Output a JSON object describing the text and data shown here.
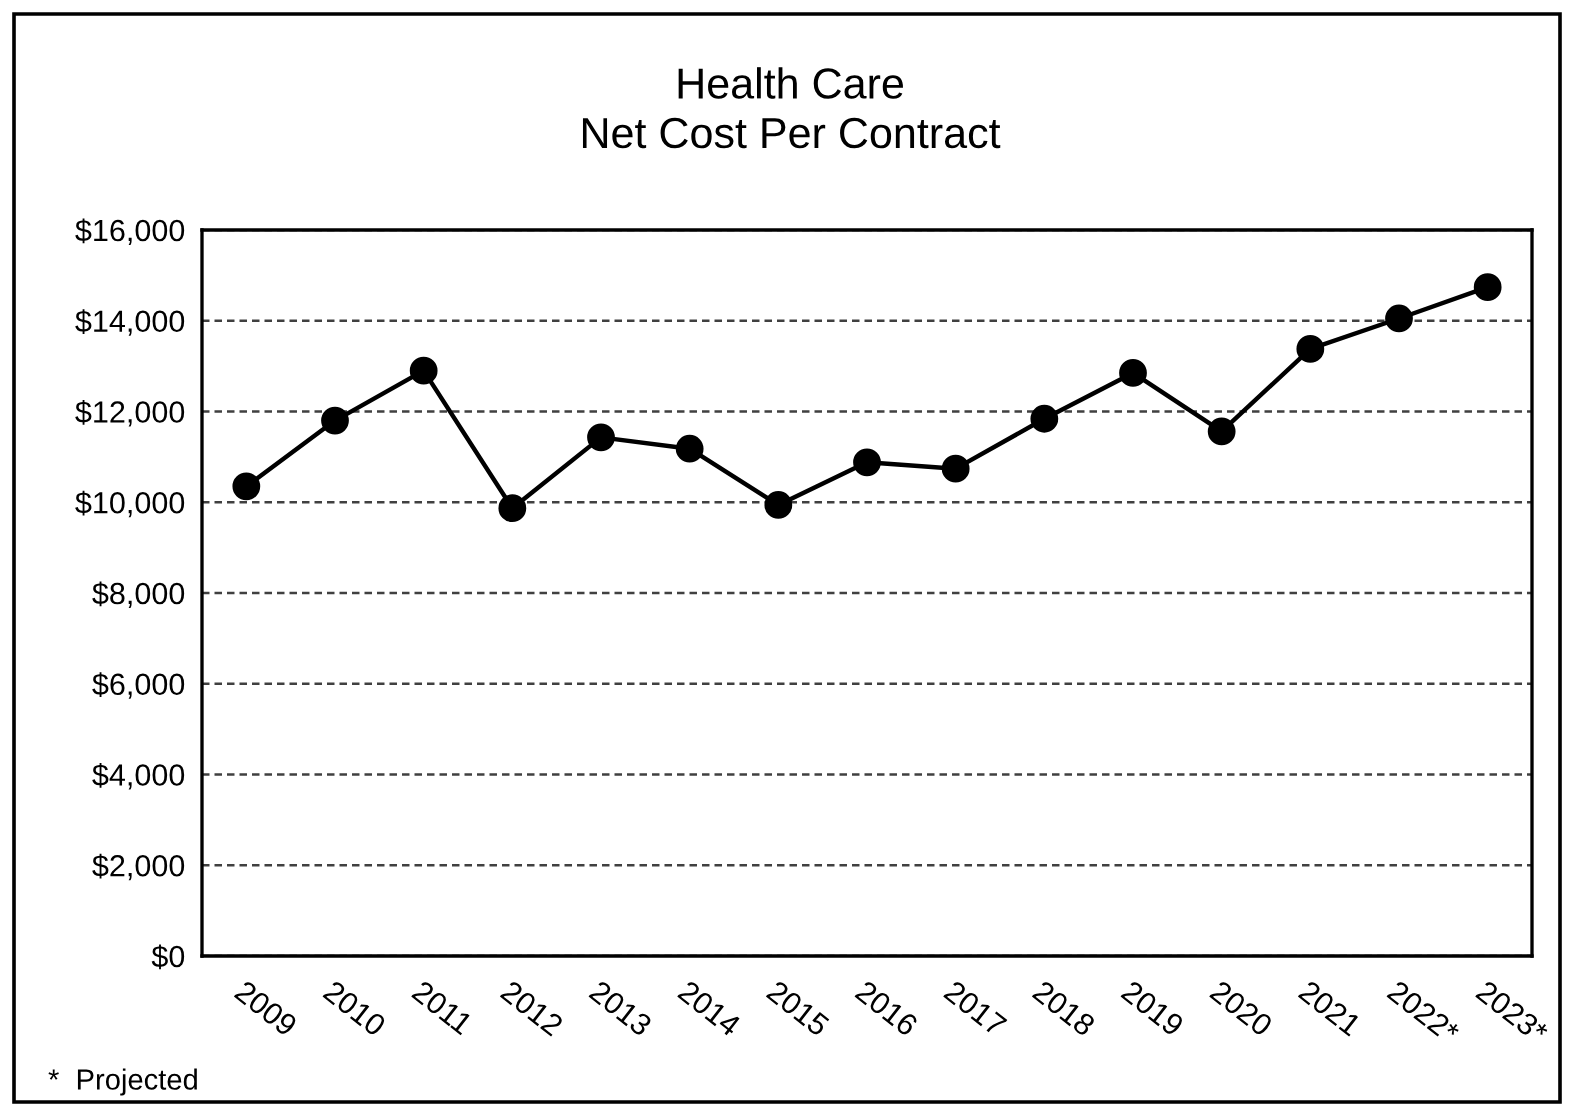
{
  "chart_data": {
    "type": "line",
    "title": "Health Care\nNet Cost Per Contract",
    "categories": [
      "2009",
      "2010",
      "2011",
      "2012",
      "2013",
      "2014",
      "2015",
      "2016",
      "2017",
      "2018",
      "2019",
      "2020",
      "2021",
      "2022*",
      "2023*"
    ],
    "series": [
      {
        "color": "#000000",
        "values": [
          10350,
          11800,
          12900,
          9870,
          11430,
          11180,
          9940,
          10880,
          10740,
          11840,
          12850,
          11560,
          13380,
          14050,
          14740
        ]
      }
    ],
    "ylim": [
      0,
      16000
    ],
    "yticks": [
      {
        "value": 0,
        "label": "$0"
      },
      {
        "value": 2000,
        "label": "$2,000"
      },
      {
        "value": 4000,
        "label": "$4,000"
      },
      {
        "value": 6000,
        "label": "$6,000"
      },
      {
        "value": 8000,
        "label": "$8,000"
      },
      {
        "value": 10000,
        "label": "$10,000"
      },
      {
        "value": 12000,
        "label": "$12,000"
      },
      {
        "value": 14000,
        "label": "$14,000"
      },
      {
        "value": 16000,
        "label": "$16,000"
      }
    ],
    "grid": "y",
    "marker": "circle",
    "line_style": "solid",
    "legend": false,
    "annotations": [
      "*  Projected"
    ]
  }
}
